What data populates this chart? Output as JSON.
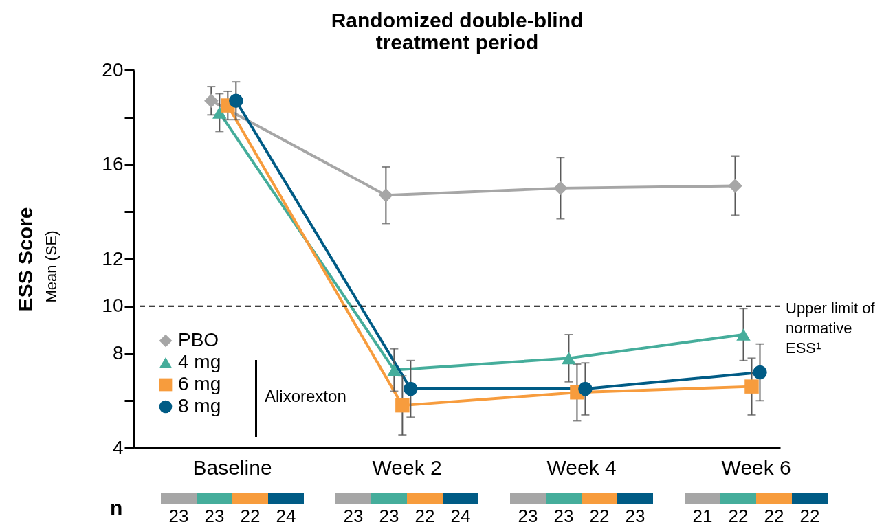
{
  "chart_data": {
    "type": "line",
    "title": "Randomized double-blind\ntreatment period",
    "ylabel": "ESS Score",
    "categories": [
      "Baseline",
      "Week 2",
      "Week 4",
      "Week 6"
    ],
    "series": [
      {
        "name": "PBO",
        "color": "#a6a6a6",
        "marker": "diamond",
        "values": [
          18.7,
          14.7,
          15.0,
          15.1
        ],
        "errors": [
          0.6,
          1.2,
          1.3,
          1.25
        ]
      },
      {
        "name": "4 mg",
        "color": "#45ad9b",
        "marker": "triangle",
        "values": [
          18.2,
          7.3,
          7.8,
          8.8
        ],
        "errors": [
          0.8,
          0.9,
          1.0,
          1.1
        ]
      },
      {
        "name": "6 mg",
        "color": "#f79c3d",
        "marker": "square",
        "values": [
          18.5,
          5.8,
          6.35,
          6.6
        ],
        "errors": [
          0.6,
          1.25,
          1.2,
          1.2
        ]
      },
      {
        "name": "8 mg",
        "color": "#005b85",
        "marker": "circle",
        "values": [
          18.7,
          6.5,
          6.5,
          7.2
        ],
        "errors": [
          0.8,
          1.2,
          1.1,
          1.2
        ]
      }
    ],
    "ylim": [
      4,
      20
    ],
    "yticks": [
      4,
      {
        "value": 6,
        "label": null
      },
      8,
      10,
      12,
      {
        "value": 14,
        "label": null
      },
      16,
      {
        "value": 18,
        "label": null
      },
      20
    ],
    "ref_lines": [
      {
        "axis": "y",
        "value": 10,
        "label": "Upper limit of normative ESS¹",
        "color": "#000000",
        "line_style": "dashed"
      }
    ],
    "legend": "bottom left",
    "grid": false,
    "annotations": [
      "Mean (SE)",
      "Alixorexton",
      "n",
      "23",
      "23",
      "22",
      "24",
      "23",
      "23",
      "22",
      "24",
      "23",
      "23",
      "22",
      "23",
      "21",
      "22",
      "22",
      "22"
    ]
  }
}
